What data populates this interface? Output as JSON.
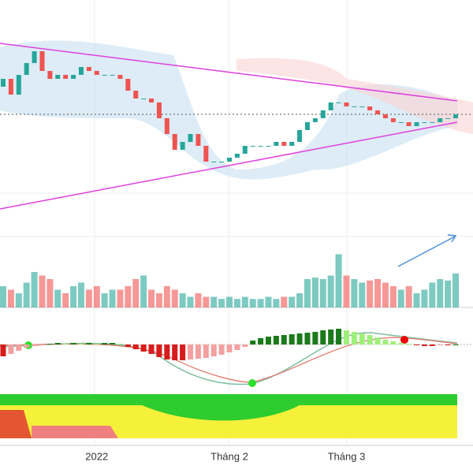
{
  "chart_data": {
    "type": "candlestick",
    "categories": [
      null,
      null,
      null,
      null,
      null,
      null,
      null,
      null,
      null,
      null,
      null,
      null,
      "2022",
      null,
      null,
      null,
      null,
      null,
      null,
      null,
      null,
      null,
      null,
      null,
      null,
      null,
      null,
      null,
      null,
      "Tháng 2",
      null,
      null,
      null,
      null,
      null,
      null,
      null,
      null,
      null,
      null,
      null,
      null,
      null,
      null,
      "Tháng 3",
      null,
      null,
      null,
      null,
      null,
      null,
      null,
      null,
      null,
      null,
      null,
      null,
      null,
      null
    ],
    "open": [
      88,
      90,
      86,
      91,
      94,
      97,
      92,
      90,
      91,
      90,
      91,
      93,
      92,
      91,
      91,
      91,
      90,
      87,
      85,
      85,
      84,
      80,
      76,
      72,
      74,
      76,
      73,
      69,
      69,
      69,
      70,
      71,
      73,
      73,
      73,
      73,
      74,
      73,
      74,
      77,
      79,
      80,
      82,
      84,
      84,
      83,
      83,
      83,
      82,
      81,
      80,
      79,
      79,
      78,
      79,
      79,
      79,
      80,
      80
    ],
    "close": [
      90,
      86,
      91,
      94,
      97,
      92,
      90,
      91,
      90,
      91,
      93,
      92,
      91,
      91,
      91,
      90,
      87,
      85,
      85,
      84,
      80,
      76,
      72,
      74,
      76,
      73,
      69,
      69,
      69,
      70,
      71,
      73,
      73,
      73,
      73,
      74,
      73,
      74,
      77,
      79,
      80,
      82,
      84,
      84,
      83,
      83,
      83,
      82,
      81,
      80,
      79,
      79,
      78,
      79,
      79,
      79,
      80,
      80,
      81
    ],
    "ylim": [
      60,
      110
    ],
    "up_color": "#26a69a",
    "down_color": "#ef5350",
    "volume": [
      30,
      25,
      20,
      35,
      50,
      45,
      40,
      25,
      20,
      30,
      35,
      25,
      30,
      20,
      25,
      25,
      30,
      40,
      45,
      25,
      20,
      30,
      25,
      20,
      15,
      20,
      15,
      15,
      12,
      15,
      12,
      15,
      12,
      12,
      15,
      12,
      15,
      15,
      20,
      40,
      42,
      40,
      45,
      75,
      45,
      40,
      35,
      38,
      40,
      35,
      30,
      25,
      30,
      20,
      25,
      35,
      40,
      38,
      48
    ],
    "volume_ylim": [
      0,
      100
    ],
    "macd_hist": [
      -15,
      -12,
      -8,
      -4,
      -2,
      -1,
      1,
      2,
      1,
      2,
      1,
      2,
      1,
      2,
      2,
      1,
      -3,
      -6,
      -9,
      -12,
      -16,
      -19,
      -20,
      -20,
      -19,
      -18,
      -17,
      -15,
      -13,
      -10,
      -7,
      -3,
      5,
      8,
      10,
      11,
      12,
      13,
      14,
      15,
      16,
      18,
      19,
      20,
      18,
      16,
      14,
      12,
      9,
      6,
      4,
      2,
      1,
      -1,
      -2,
      -2,
      -1,
      -1,
      0
    ],
    "macd_ylim": [
      -40,
      40
    ]
  }
}
